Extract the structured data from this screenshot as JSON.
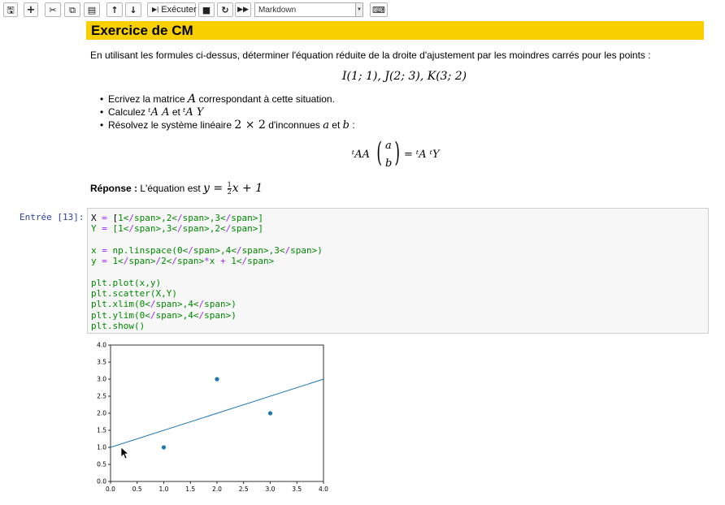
{
  "toolbar": {
    "run_label": "Exécuter",
    "cell_type": "Markdown",
    "buttons": [
      "save-icon",
      "plus-icon",
      "scissors-icon",
      "copy-icon",
      "paste-icon",
      "arrow-up-icon",
      "arrow-down-icon",
      "run-icon",
      "stop-icon",
      "restart-icon",
      "fast-forward-icon",
      "keyboard-icon"
    ]
  },
  "markdown": {
    "title": "Exercice de CM",
    "intro": "En utilisant les formules ci-dessus, déterminer l'équation réduite de la droite d'ajustement par les moindres carrés pour les points :",
    "points": "I(1; 1), J(2; 3), K(3; 2)",
    "bullets": [
      {
        "text": "Ecrivez la matrice ",
        "math": "A",
        "rest": " correspondant à cette situation."
      },
      {
        "text": "Calculez ",
        "math1": "ᵗA A",
        "mid": " et ",
        "math2": "ᵗA Y"
      },
      {
        "text": "Résolvez le système linéaire ",
        "math1": "2 × 2",
        "mid": " d'inconnues ",
        "math2": "a",
        "mid2": " et ",
        "math3": "b",
        "rest": " :"
      }
    ],
    "equation_left": "ᵗAA",
    "vec_a": "a",
    "vec_b": "b",
    "equation_right": "= ᵗA ᵗY",
    "answer_label": "Réponse :",
    "answer_text": " L'équation est ",
    "answer_math": "y = ",
    "frac_num": "1",
    "frac_den": "2",
    "answer_math_rest": "x + 1"
  },
  "code_cell": {
    "prompt": "Entrée [13]:",
    "lines": [
      "X = [1,2,3]",
      "Y = [1,3,2]",
      "",
      "x = np.linspace(0,4,3)",
      "y = 1/2*x + 1",
      "",
      "plt.plot(x,y)",
      "plt.scatter(X,Y)",
      "plt.xlim(0,4)",
      "plt.ylim(0,4)",
      "plt.show()"
    ]
  },
  "chart_data": {
    "type": "scatter",
    "title": "",
    "xlabel": "",
    "ylabel": "",
    "xlim": [
      0,
      4
    ],
    "ylim": [
      0,
      4
    ],
    "xticks": [
      "0.0",
      "0.5",
      "1.0",
      "1.5",
      "2.0",
      "2.5",
      "3.0",
      "3.5",
      "4.0"
    ],
    "yticks": [
      "0.0",
      "0.5",
      "1.0",
      "1.5",
      "2.0",
      "2.5",
      "3.0",
      "3.5",
      "4.0"
    ],
    "line": {
      "x": [
        0,
        2,
        4
      ],
      "y": [
        1,
        2,
        3
      ]
    },
    "points": {
      "x": [
        1,
        2,
        3
      ],
      "y": [
        1,
        3,
        2
      ]
    },
    "color": "#1f77b4",
    "grid": false
  }
}
